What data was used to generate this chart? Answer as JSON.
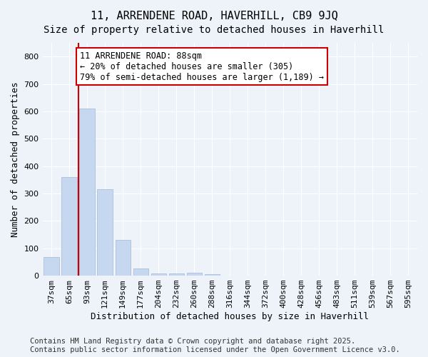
{
  "title1": "11, ARRENDENE ROAD, HAVERHILL, CB9 9JQ",
  "title2": "Size of property relative to detached houses in Haverhill",
  "xlabel": "Distribution of detached houses by size in Haverhill",
  "ylabel": "Number of detached properties",
  "bins": [
    "37sqm",
    "65sqm",
    "93sqm",
    "121sqm",
    "149sqm",
    "177sqm",
    "204sqm",
    "232sqm",
    "260sqm",
    "288sqm",
    "316sqm",
    "344sqm",
    "372sqm",
    "400sqm",
    "428sqm",
    "456sqm",
    "483sqm",
    "511sqm",
    "539sqm",
    "567sqm",
    "595sqm"
  ],
  "values": [
    67,
    360,
    610,
    316,
    130,
    25,
    8,
    8,
    10,
    5,
    0,
    0,
    0,
    0,
    0,
    0,
    0,
    0,
    0,
    0,
    0
  ],
  "bar_color": "#c5d8f0",
  "bar_edge_color": "#a0b8d8",
  "vline_color": "#cc0000",
  "annotation_box_color": "#cc0000",
  "annotation_text": "11 ARRENDENE ROAD: 88sqm\n← 20% of detached houses are smaller (305)\n79% of semi-detached houses are larger (1,189) →",
  "ylim": [
    0,
    850
  ],
  "yticks": [
    0,
    100,
    200,
    300,
    400,
    500,
    600,
    700,
    800
  ],
  "footer1": "Contains HM Land Registry data © Crown copyright and database right 2025.",
  "footer2": "Contains public sector information licensed under the Open Government Licence v3.0.",
  "bg_color": "#eef3fa",
  "plot_bg_color": "#eef3fa",
  "title_fontsize": 11,
  "subtitle_fontsize": 10,
  "axis_label_fontsize": 9,
  "tick_fontsize": 8,
  "annotation_fontsize": 8.5,
  "footer_fontsize": 7.5
}
